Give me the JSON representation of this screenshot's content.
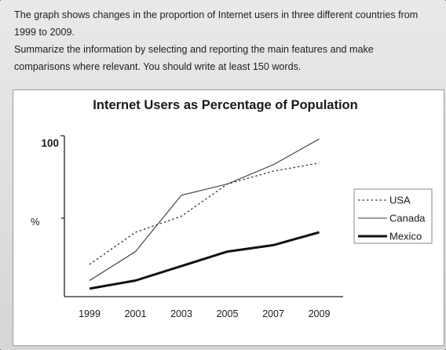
{
  "task": {
    "line1": "The graph shows changes in the proportion of Internet users in three different countries from",
    "line2": "1999 to 2009.",
    "line3": "Summarize the information by selecting and reporting the main features and make",
    "line4": "comparisons where relevant. You should write at least 150 words."
  },
  "chart_data": {
    "type": "line",
    "title": "Internet Users as Percentage of Population",
    "xlabel": "",
    "ylabel": "%",
    "y_tick_label": "100",
    "ylim": [
      0,
      100
    ],
    "x": [
      1999,
      2001,
      2003,
      2005,
      2007,
      2009
    ],
    "x_tick_labels": [
      "1999",
      "2001",
      "2003",
      "2005",
      "2007",
      "2009"
    ],
    "legend_position": "right",
    "grid": false,
    "series": [
      {
        "name": "USA",
        "style": "dotted",
        "values": [
          20,
          40,
          50,
          70,
          78,
          83
        ]
      },
      {
        "name": "Canada",
        "style": "thin",
        "values": [
          10,
          28,
          63,
          70,
          82,
          98
        ]
      },
      {
        "name": "Mexico",
        "style": "thick",
        "values": [
          5,
          10,
          19,
          28,
          32,
          40
        ]
      }
    ]
  }
}
